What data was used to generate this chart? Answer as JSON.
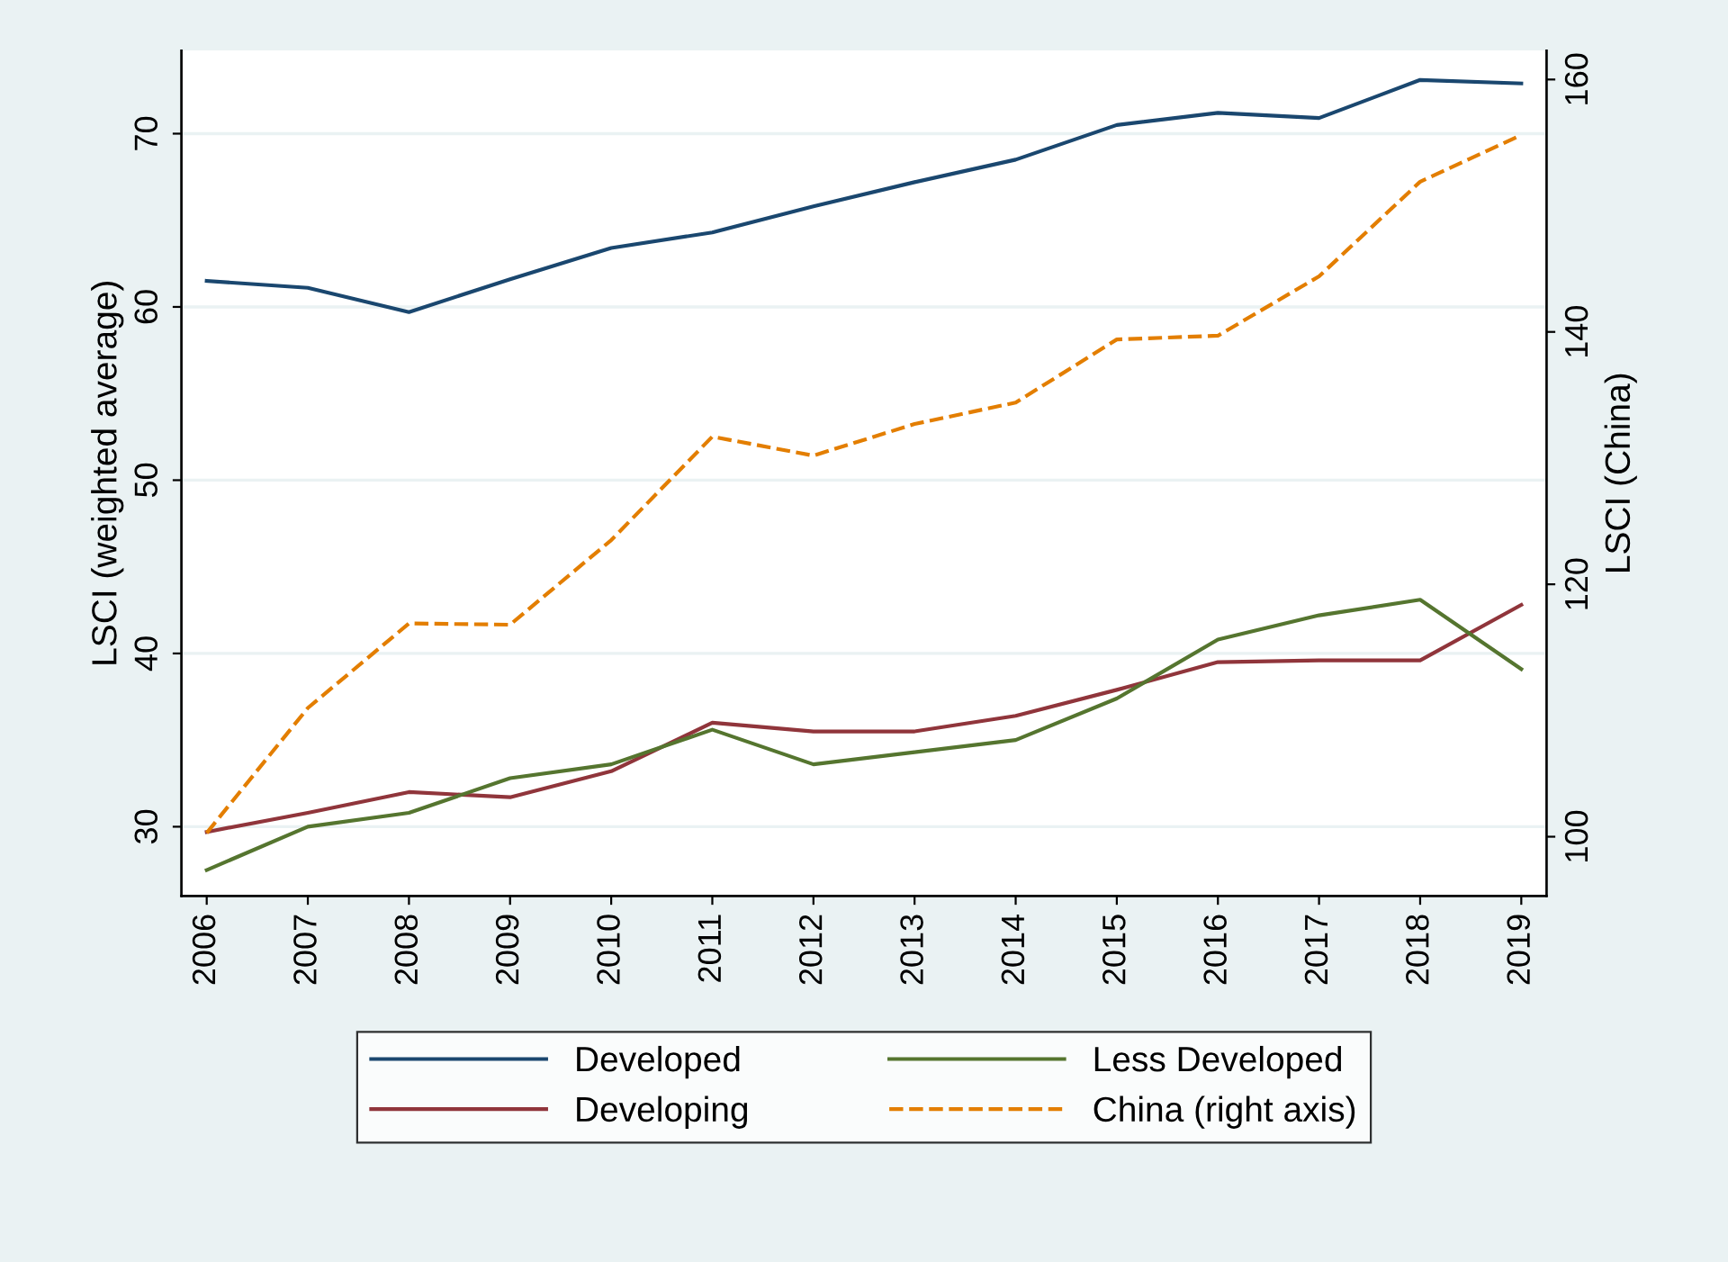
{
  "chart_data": {
    "type": "line",
    "categories": [
      "2006",
      "2007",
      "2008",
      "2009",
      "2010",
      "2011",
      "2012",
      "2013",
      "2014",
      "2015",
      "2016",
      "2017",
      "2018",
      "2019"
    ],
    "series": [
      {
        "name": "Developed",
        "color": "#1a476f",
        "values": [
          61.5,
          61.1,
          59.7,
          61.6,
          63.4,
          64.3,
          65.8,
          67.2,
          68.5,
          70.5,
          71.2,
          70.9,
          73.1,
          72.9
        ]
      },
      {
        "name": "Developing",
        "color": "#90353b",
        "values": [
          29.7,
          30.8,
          32.0,
          31.7,
          33.2,
          36.0,
          35.5,
          35.5,
          36.4,
          37.9,
          39.5,
          39.6,
          39.6,
          42.8
        ]
      },
      {
        "name": "Less Developed",
        "color": "#55752f",
        "values": [
          27.5,
          30.0,
          30.8,
          32.8,
          33.6,
          35.6,
          33.6,
          34.3,
          35.0,
          37.4,
          40.8,
          42.2,
          43.1,
          39.1
        ]
      },
      {
        "name": "China (right axis)",
        "color": "#e37e00",
        "axis": "y2",
        "line_style": "dashed",
        "values": [
          100.3,
          110.2,
          116.9,
          116.8,
          123.5,
          131.7,
          130.2,
          132.7,
          134.4,
          139.4,
          139.7,
          144.4,
          151.9,
          155.6
        ]
      }
    ],
    "ylabel": "LSCI (weighted average)",
    "y2label": "LSCI (China)",
    "ylim": [
      26,
      74.8
    ],
    "yticks": [
      30,
      40,
      50,
      60,
      70
    ],
    "y2lim": [
      95.3,
      162.3
    ],
    "y2ticks": [
      100,
      120,
      140,
      160
    ],
    "grid": "y",
    "legend": "bottom",
    "line_style": "solid",
    "marker": "none"
  }
}
